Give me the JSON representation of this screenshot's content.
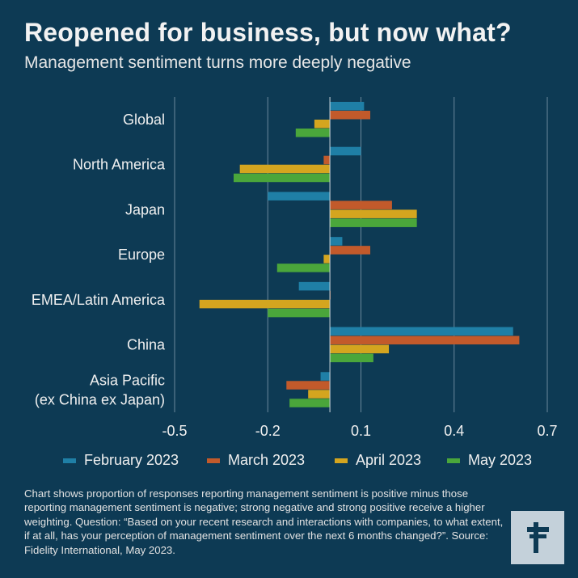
{
  "header": {
    "title": "Reopened for business, but now what?",
    "subtitle": "Management sentiment turns more deeply negative"
  },
  "footnote": "Chart shows proportion of responses reporting management sentiment is positive minus those reporting management sentiment is negative; strong negative and strong positive receive a higher weighting. Question: “Based on your recent research and interactions with companies, to what extent, if at all, has your perception of management sentiment over the next 6 months changed?”. Source: Fidelity International, May 2023.",
  "logo": {
    "icon": "fidelity-f-icon"
  },
  "chart_data": {
    "type": "bar",
    "orientation": "horizontal",
    "categories": [
      [
        "Global"
      ],
      [
        "North America"
      ],
      [
        "Japan"
      ],
      [
        "Europe"
      ],
      [
        "EMEA/Latin America"
      ],
      [
        "China"
      ],
      [
        "Asia Pacific",
        "(ex China ex Japan)"
      ]
    ],
    "series": [
      {
        "name": "February 2023",
        "color": "#1f7fa6",
        "values": [
          0.11,
          0.1,
          -0.2,
          0.04,
          -0.1,
          0.59,
          -0.03
        ]
      },
      {
        "name": "March 2023",
        "color": "#c25a2b",
        "values": [
          0.13,
          -0.02,
          0.2,
          0.13,
          0.0,
          0.61,
          -0.14
        ]
      },
      {
        "name": "April 2023",
        "color": "#d4a51f",
        "values": [
          -0.05,
          -0.29,
          0.28,
          -0.02,
          -0.42,
          0.19,
          -0.07
        ]
      },
      {
        "name": "May 2023",
        "color": "#4aa63b",
        "values": [
          -0.11,
          -0.31,
          0.28,
          -0.17,
          -0.2,
          0.14,
          -0.13
        ]
      }
    ],
    "x_ticks": [
      -0.5,
      -0.2,
      0.1,
      0.4,
      0.7
    ],
    "x_tick_labels": [
      "-0.5",
      "-0.2",
      "0.1",
      "0.4",
      "0.7"
    ],
    "xlim": [
      -0.5,
      0.7
    ],
    "grid": "vertical",
    "legend": "bottom"
  }
}
